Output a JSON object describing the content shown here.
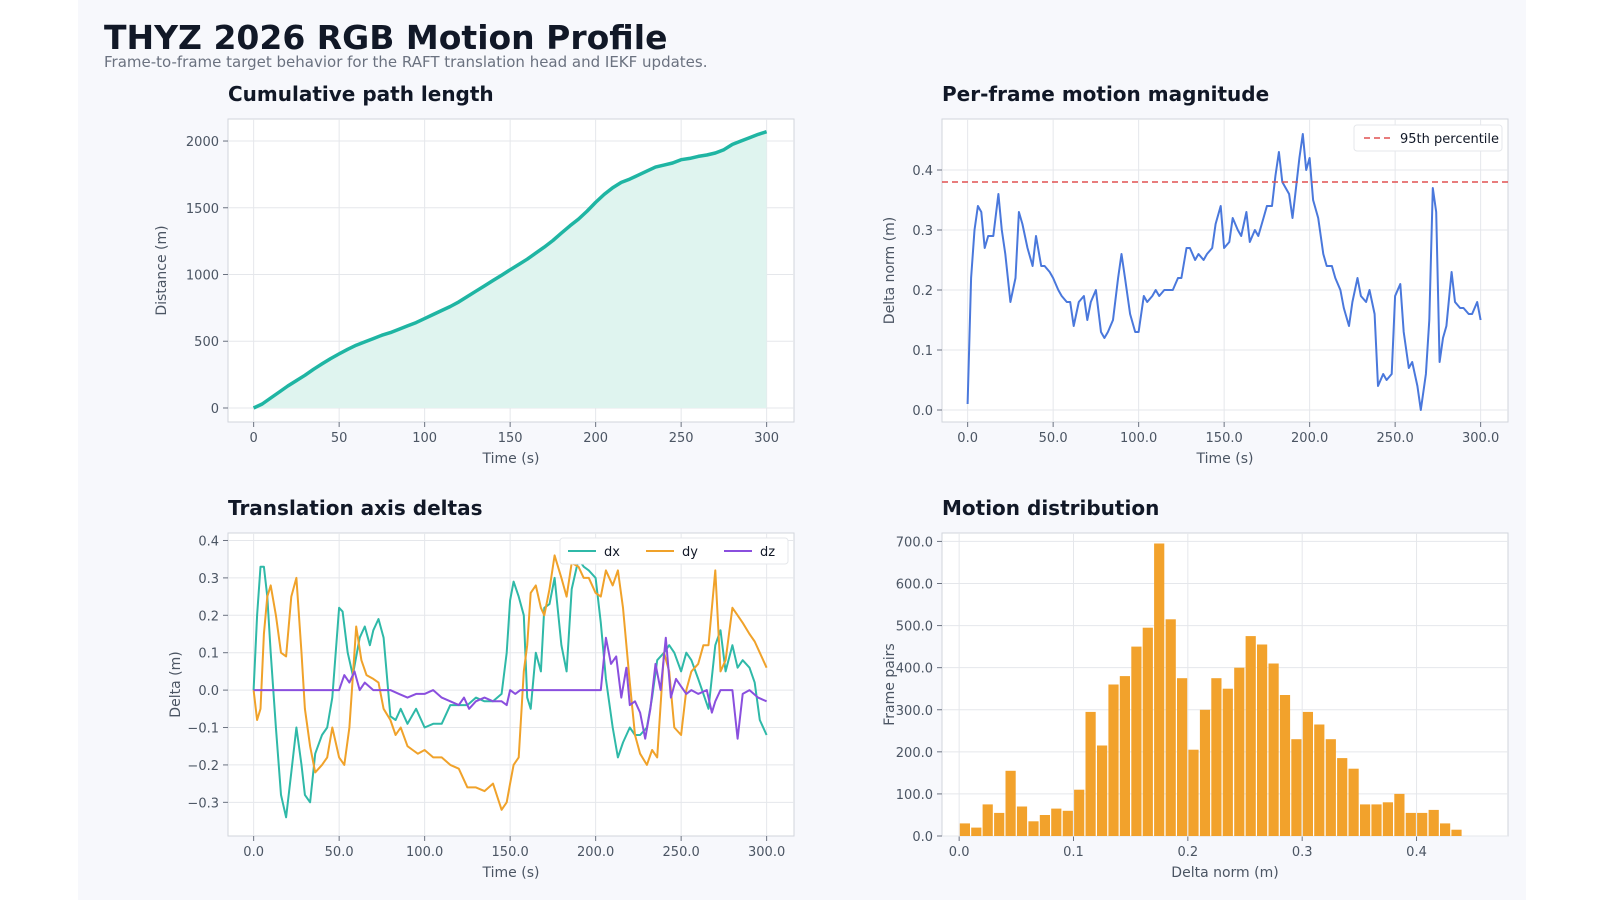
{
  "page": {
    "title": "THYZ 2026 RGB Motion Profile",
    "subtitle": "Frame-to-frame target behavior for the RAFT translation head and IEKF updates."
  },
  "chart_data": [
    {
      "id": "path",
      "type": "area",
      "title": "Cumulative path length",
      "xlabel": "Time (s)",
      "ylabel": "Distance (m)",
      "xlim": [
        -15,
        316
      ],
      "ylim": [
        -105,
        2165
      ],
      "xticks": [
        0,
        50,
        100,
        150,
        200,
        250,
        300
      ],
      "yticks": [
        0,
        500,
        1000,
        1500,
        2000
      ],
      "grid": true,
      "color": "#1fb5a3",
      "fill": "#dff4ef",
      "series": [
        {
          "x": [
            0,
            5,
            10,
            15,
            20,
            25,
            30,
            35,
            40,
            45,
            50,
            55,
            60,
            65,
            70,
            75,
            80,
            85,
            90,
            95,
            100,
            105,
            110,
            115,
            120,
            125,
            130,
            135,
            140,
            145,
            150,
            155,
            160,
            165,
            170,
            175,
            180,
            185,
            190,
            195,
            200,
            205,
            210,
            215,
            220,
            225,
            230,
            235,
            240,
            245,
            250,
            255,
            260,
            265,
            270,
            275,
            280,
            285,
            290,
            295,
            300
          ],
          "values": [
            0,
            30,
            75,
            120,
            165,
            205,
            245,
            290,
            330,
            370,
            405,
            440,
            470,
            495,
            520,
            545,
            565,
            590,
            615,
            640,
            670,
            700,
            730,
            760,
            795,
            835,
            875,
            915,
            955,
            995,
            1035,
            1075,
            1115,
            1160,
            1205,
            1255,
            1310,
            1365,
            1415,
            1475,
            1540,
            1600,
            1650,
            1690,
            1715,
            1745,
            1775,
            1805,
            1820,
            1835,
            1860,
            1870,
            1885,
            1895,
            1910,
            1935,
            1975,
            2000,
            2025,
            2050,
            2070
          ]
        }
      ]
    },
    {
      "id": "magnitude",
      "type": "line",
      "title": "Per-frame motion magnitude",
      "xlabel": "Time (s)",
      "ylabel": "Delta norm (m)",
      "xlim": [
        -15,
        316
      ],
      "ylim": [
        -0.02,
        0.485
      ],
      "xticks": [
        0,
        50,
        100,
        150,
        200,
        250,
        300
      ],
      "yticks": [
        0.0,
        0.1,
        0.2,
        0.3,
        0.4
      ],
      "grid": true,
      "reference_line": {
        "name": "95th percentile",
        "value": 0.38,
        "color": "#e05050"
      },
      "legend": "top-right",
      "series": [
        {
          "color": "#4a78dc",
          "x": [
            0,
            2,
            4,
            6,
            8,
            10,
            12,
            15,
            18,
            20,
            22,
            25,
            28,
            30,
            32,
            35,
            38,
            40,
            43,
            45,
            48,
            50,
            53,
            55,
            58,
            60,
            62,
            65,
            68,
            70,
            72,
            75,
            78,
            80,
            82,
            85,
            88,
            90,
            92,
            95,
            98,
            100,
            103,
            105,
            108,
            110,
            112,
            115,
            118,
            120,
            123,
            125,
            128,
            130,
            133,
            135,
            138,
            140,
            143,
            145,
            148,
            150,
            153,
            155,
            158,
            160,
            163,
            165,
            168,
            170,
            173,
            175,
            178,
            180,
            182,
            184,
            186,
            188,
            190,
            192,
            194,
            196,
            198,
            200,
            202,
            205,
            208,
            210,
            213,
            215,
            218,
            220,
            223,
            225,
            228,
            230,
            233,
            235,
            238,
            240,
            243,
            245,
            248,
            250,
            253,
            255,
            258,
            260,
            263,
            265,
            268,
            270,
            272,
            274,
            276,
            278,
            280,
            283,
            285,
            288,
            290,
            293,
            295,
            298,
            300
          ],
          "values": [
            0.01,
            0.22,
            0.3,
            0.34,
            0.33,
            0.27,
            0.29,
            0.29,
            0.36,
            0.3,
            0.26,
            0.18,
            0.22,
            0.33,
            0.31,
            0.27,
            0.24,
            0.29,
            0.24,
            0.24,
            0.23,
            0.22,
            0.2,
            0.19,
            0.18,
            0.18,
            0.14,
            0.18,
            0.19,
            0.15,
            0.18,
            0.2,
            0.13,
            0.12,
            0.13,
            0.15,
            0.22,
            0.26,
            0.22,
            0.16,
            0.13,
            0.13,
            0.19,
            0.18,
            0.19,
            0.2,
            0.19,
            0.2,
            0.2,
            0.2,
            0.22,
            0.22,
            0.27,
            0.27,
            0.25,
            0.26,
            0.25,
            0.26,
            0.27,
            0.31,
            0.34,
            0.27,
            0.28,
            0.32,
            0.3,
            0.29,
            0.33,
            0.28,
            0.3,
            0.29,
            0.32,
            0.34,
            0.34,
            0.39,
            0.43,
            0.38,
            0.37,
            0.36,
            0.32,
            0.37,
            0.42,
            0.46,
            0.4,
            0.42,
            0.35,
            0.32,
            0.26,
            0.24,
            0.24,
            0.22,
            0.2,
            0.17,
            0.14,
            0.18,
            0.22,
            0.19,
            0.18,
            0.2,
            0.16,
            0.04,
            0.06,
            0.05,
            0.06,
            0.19,
            0.21,
            0.13,
            0.07,
            0.08,
            0.04,
            0.0,
            0.06,
            0.15,
            0.37,
            0.33,
            0.08,
            0.12,
            0.14,
            0.23,
            0.18,
            0.17,
            0.17,
            0.16,
            0.16,
            0.18,
            0.15
          ]
        }
      ]
    },
    {
      "id": "axes",
      "type": "line",
      "title": "Translation axis deltas",
      "xlabel": "Time (s)",
      "ylabel": "Delta (m)",
      "xlim": [
        -15,
        316
      ],
      "ylim": [
        -0.39,
        0.42
      ],
      "xticks": [
        0,
        50,
        100,
        150,
        200,
        250,
        300
      ],
      "yticks": [
        -0.3,
        -0.2,
        -0.1,
        0.0,
        0.1,
        0.2,
        0.3,
        0.4
      ],
      "grid": true,
      "legend": "top-right",
      "series": [
        {
          "name": "dx",
          "color": "#2fb9a8",
          "x": [
            0,
            2,
            4,
            6,
            8,
            10,
            13,
            16,
            19,
            22,
            25,
            28,
            30,
            33,
            36,
            40,
            43,
            46,
            50,
            52,
            55,
            58,
            62,
            65,
            68,
            70,
            73,
            76,
            80,
            83,
            86,
            90,
            95,
            100,
            105,
            110,
            115,
            120,
            125,
            130,
            135,
            140,
            145,
            148,
            150,
            152,
            155,
            158,
            160,
            162,
            165,
            168,
            170,
            173,
            176,
            180,
            183,
            186,
            190,
            193,
            196,
            200,
            203,
            206,
            210,
            213,
            216,
            220,
            223,
            226,
            230,
            233,
            236,
            240,
            243,
            246,
            250,
            253,
            256,
            260,
            263,
            266,
            270,
            273,
            276,
            280,
            283,
            286,
            290,
            293,
            296,
            300
          ],
          "values": [
            0.0,
            0.2,
            0.33,
            0.33,
            0.25,
            0.1,
            -0.1,
            -0.28,
            -0.34,
            -0.22,
            -0.1,
            -0.2,
            -0.28,
            -0.3,
            -0.17,
            -0.12,
            -0.1,
            -0.02,
            0.22,
            0.21,
            0.1,
            0.04,
            0.14,
            0.17,
            0.12,
            0.16,
            0.19,
            0.14,
            -0.07,
            -0.08,
            -0.05,
            -0.09,
            -0.05,
            -0.1,
            -0.09,
            -0.09,
            -0.04,
            -0.04,
            -0.04,
            -0.02,
            -0.03,
            -0.03,
            -0.01,
            0.1,
            0.24,
            0.29,
            0.25,
            0.2,
            -0.02,
            -0.05,
            0.1,
            0.05,
            0.22,
            0.23,
            0.3,
            0.12,
            0.05,
            0.27,
            0.35,
            0.33,
            0.32,
            0.3,
            0.18,
            0.03,
            -0.1,
            -0.18,
            -0.14,
            -0.1,
            -0.12,
            -0.12,
            -0.1,
            -0.02,
            0.08,
            0.1,
            0.12,
            0.1,
            0.05,
            0.1,
            0.08,
            0.03,
            -0.01,
            -0.05,
            0.12,
            0.16,
            0.05,
            0.12,
            0.06,
            0.08,
            0.06,
            0.02,
            -0.08,
            -0.12
          ]
        },
        {
          "name": "dy",
          "color": "#f0a22a",
          "x": [
            0,
            2,
            4,
            6,
            8,
            10,
            13,
            16,
            19,
            22,
            25,
            28,
            30,
            33,
            36,
            40,
            43,
            46,
            50,
            53,
            56,
            60,
            63,
            66,
            70,
            73,
            76,
            80,
            83,
            86,
            90,
            93,
            96,
            100,
            105,
            110,
            115,
            120,
            125,
            130,
            135,
            140,
            145,
            148,
            150,
            152,
            155,
            158,
            160,
            162,
            165,
            168,
            170,
            173,
            176,
            180,
            183,
            186,
            190,
            193,
            196,
            200,
            203,
            206,
            210,
            213,
            216,
            220,
            223,
            226,
            230,
            233,
            236,
            240,
            243,
            246,
            250,
            253,
            256,
            260,
            263,
            266,
            270,
            273,
            276,
            280,
            283,
            286,
            290,
            293,
            296,
            300
          ],
          "values": [
            0.0,
            -0.08,
            -0.05,
            0.15,
            0.25,
            0.28,
            0.2,
            0.1,
            0.09,
            0.25,
            0.3,
            0.1,
            -0.05,
            -0.15,
            -0.22,
            -0.2,
            -0.18,
            -0.1,
            -0.18,
            -0.2,
            -0.1,
            0.17,
            0.08,
            0.04,
            0.03,
            0.02,
            -0.05,
            -0.08,
            -0.12,
            -0.1,
            -0.15,
            -0.16,
            -0.17,
            -0.16,
            -0.18,
            -0.18,
            -0.2,
            -0.21,
            -0.26,
            -0.26,
            -0.27,
            -0.25,
            -0.32,
            -0.3,
            -0.25,
            -0.2,
            -0.18,
            0.05,
            0.12,
            0.26,
            0.28,
            0.22,
            0.2,
            0.27,
            0.36,
            0.3,
            0.25,
            0.34,
            0.33,
            0.3,
            0.3,
            0.26,
            0.25,
            0.32,
            0.28,
            0.32,
            0.22,
            0.02,
            -0.12,
            -0.17,
            -0.2,
            -0.16,
            -0.18,
            0.1,
            0.05,
            -0.1,
            -0.12,
            0.0,
            0.05,
            0.07,
            0.12,
            0.12,
            0.32,
            0.05,
            0.08,
            0.22,
            0.2,
            0.18,
            0.15,
            0.13,
            0.1,
            0.06
          ]
        },
        {
          "name": "dz",
          "color": "#8a4fde",
          "x": [
            0,
            5,
            10,
            15,
            20,
            25,
            30,
            35,
            40,
            45,
            50,
            53,
            56,
            59,
            62,
            65,
            70,
            75,
            80,
            85,
            90,
            95,
            100,
            105,
            110,
            115,
            120,
            123,
            126,
            130,
            135,
            140,
            145,
            148,
            150,
            153,
            156,
            160,
            165,
            170,
            175,
            180,
            185,
            190,
            195,
            200,
            203,
            206,
            209,
            212,
            215,
            218,
            220,
            223,
            226,
            229,
            232,
            235,
            238,
            241,
            244,
            247,
            250,
            253,
            256,
            260,
            265,
            268,
            270,
            273,
            276,
            280,
            283,
            286,
            290,
            295,
            300
          ],
          "values": [
            0.0,
            0.0,
            0.0,
            0.0,
            0.0,
            0.0,
            0.0,
            0.0,
            0.0,
            0.0,
            0.0,
            0.04,
            0.02,
            0.05,
            0.0,
            0.02,
            0.0,
            0.0,
            0.0,
            -0.01,
            -0.02,
            -0.01,
            -0.01,
            0.0,
            -0.02,
            -0.03,
            -0.04,
            -0.02,
            -0.05,
            -0.03,
            -0.02,
            -0.03,
            -0.03,
            -0.04,
            0.0,
            -0.01,
            0.0,
            0.0,
            0.0,
            0.0,
            0.0,
            0.0,
            0.0,
            0.0,
            0.0,
            0.0,
            0.0,
            0.14,
            0.07,
            0.09,
            -0.02,
            0.06,
            -0.04,
            -0.03,
            -0.06,
            -0.13,
            -0.05,
            0.07,
            0.0,
            0.14,
            -0.02,
            0.03,
            0.01,
            -0.01,
            0.0,
            -0.01,
            0.0,
            -0.06,
            -0.03,
            0.0,
            0.0,
            0.0,
            -0.13,
            -0.01,
            0.0,
            -0.02,
            -0.03
          ]
        }
      ]
    },
    {
      "id": "hist",
      "type": "bar",
      "title": "Motion distribution",
      "xlabel": "Delta norm (m)",
      "ylabel": "Frame pairs",
      "xlim": [
        -0.015,
        0.48
      ],
      "ylim": [
        0,
        720
      ],
      "xticks": [
        0.0,
        0.1,
        0.2,
        0.3,
        0.4
      ],
      "yticks": [
        0,
        100,
        200,
        300,
        400,
        500,
        600,
        700
      ],
      "grid": true,
      "color": "#f2a22c",
      "bin_start": 0.0,
      "bin_width": 0.01,
      "values": [
        30,
        20,
        75,
        55,
        155,
        70,
        35,
        50,
        65,
        60,
        110,
        295,
        215,
        360,
        380,
        450,
        495,
        695,
        515,
        375,
        205,
        300,
        375,
        350,
        400,
        475,
        455,
        410,
        335,
        230,
        295,
        265,
        230,
        185,
        160,
        75,
        75,
        80,
        100,
        55,
        55,
        62,
        30,
        15
      ]
    }
  ]
}
